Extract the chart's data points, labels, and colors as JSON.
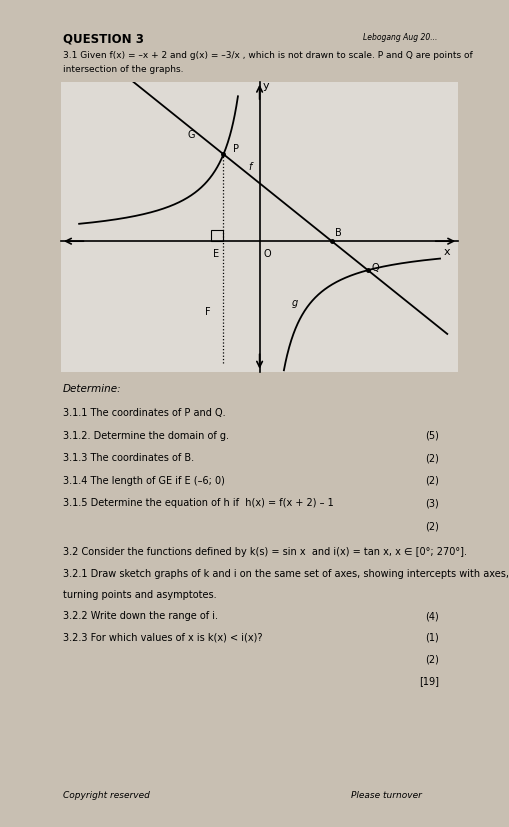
{
  "bg_color": "#c8bfb2",
  "paper_color": "#dedad4",
  "title": "QUESTION 3",
  "title_right": "Lebogang Aug 20...",
  "intro_line1": "3.1 Given f(x) = –x + 2 and g(x) = –3/x , which is not drawn to scale. P and Q are points of",
  "intro_line2": "intersection of the graphs.",
  "determine_label": "Determine:",
  "q311": "3.1.1 The coordinates of P and Q.",
  "q312": "3.1.2. Determine the domain of g.",
  "q312_marks": "(5)",
  "q313": "3.1.3 The coordinates of B.",
  "q313_marks": "(2)",
  "q314": "3.1.4 The length of GE if E (–6; 0)",
  "q314_marks": "(2)",
  "q315": "3.1.5 Determine the equation of h if  h(x) = f(x + 2) – 1",
  "q315_marks": "(3)",
  "q315_marks2": "(2)",
  "q32_intro": "3.2 Consider the functions defined by k(s) = sin x  and i(x) = tan x, x ∈ [0°; 270°].",
  "q321_line1": "3.2.1 Draw sketch graphs of k and i on the same set of axes, showing intercepts with axes,",
  "q321_line2": "turning points and asymptotes.",
  "q322": "3.2.2 Write down the range of i.",
  "q322_marks": "(4)",
  "q323": "3.2.3 For which values of x is k(x) < i(x)?",
  "q323_marks": "(1)",
  "extra_marks1": "(2)",
  "extra_marks2": "[19]",
  "footer_left": "Copyright reserved",
  "footer_right": "Please turnover"
}
